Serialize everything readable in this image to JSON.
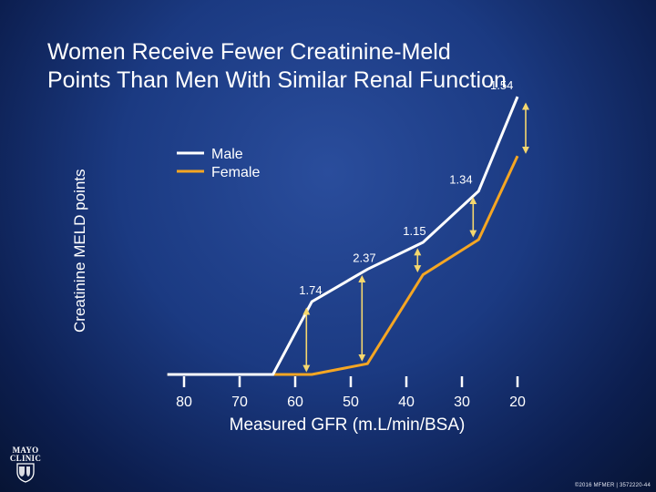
{
  "slide": {
    "title_line1": "Women Receive Fewer Creatinine-Meld",
    "title_line2": "Points Than Men With Similar Renal Function",
    "logo_text": [
      "MAYO",
      "CLINIC"
    ],
    "copyright": "©2016 MFMER | 3572220-44"
  },
  "colors": {
    "male": "#ffffff",
    "female": "#f5a623",
    "arrow": "#f5d76e",
    "text": "#ffffff"
  },
  "chart_data": {
    "type": "line",
    "title": "Women Receive Fewer Creatinine-Meld Points Than Men With Similar Renal Function",
    "xlabel": "Measured GFR (m.L/min/BSA)",
    "ylabel": "Creatinine MELD points",
    "x_ticks": [
      80,
      70,
      60,
      50,
      40,
      30,
      20
    ],
    "xlim": [
      80,
      20
    ],
    "x_reversed": true,
    "ylim": [
      0,
      10
    ],
    "legend": [
      "Male",
      "Female"
    ],
    "legend_position": "top-left",
    "series": [
      {
        "name": "Male",
        "x": [
          83,
          64,
          57,
          47,
          37,
          27,
          20
        ],
        "y": [
          0,
          0,
          2.7,
          3.9,
          4.9,
          6.8,
          10.3
        ]
      },
      {
        "name": "Female",
        "x": [
          83,
          57,
          47,
          37,
          27,
          20
        ],
        "y": [
          0,
          0,
          0.4,
          3.7,
          5.0,
          8.1
        ]
      }
    ],
    "annotations": [
      {
        "label": "1.74",
        "x": 57,
        "y_top": 2.7,
        "y_bottom": 0
      },
      {
        "label": "2.37",
        "x": 47,
        "y_top": 3.9,
        "y_bottom": 0.4
      },
      {
        "label": "1.15",
        "x": 37,
        "y_top": 4.9,
        "y_bottom": 3.7
      },
      {
        "label": "1.34",
        "x": 27,
        "y_top": 6.8,
        "y_bottom": 5.0
      },
      {
        "label": "1.54",
        "x": 20,
        "y_top": 10.3,
        "y_bottom": 8.1
      }
    ]
  }
}
